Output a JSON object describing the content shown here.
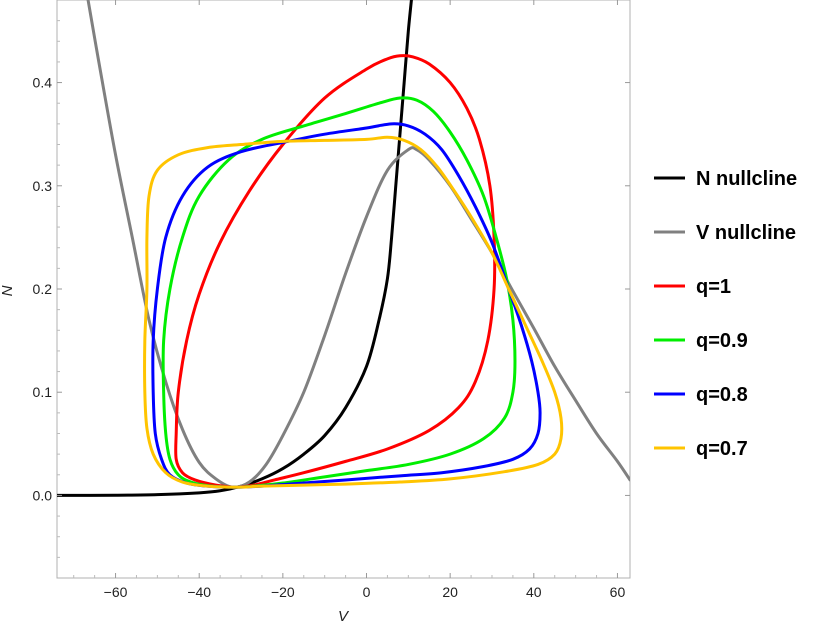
{
  "chart_data": {
    "type": "line",
    "title": "",
    "xlabel": "V",
    "ylabel": "N",
    "xlim": [
      -74,
      63
    ],
    "ylim": [
      -0.08,
      0.48
    ],
    "grid": false,
    "legend_position": "right",
    "x_ticks": [
      -60,
      -40,
      -20,
      0,
      20,
      40,
      60
    ],
    "x_tick_labels": [
      "−60",
      "−40",
      "−20",
      "0",
      "20",
      "40",
      "60"
    ],
    "y_ticks": [
      0.0,
      0.1,
      0.2,
      0.3,
      0.4
    ],
    "y_tick_labels": [
      "0.0",
      "0.1",
      "0.2",
      "0.3",
      "0.4"
    ],
    "series": [
      {
        "name": "N nullcline",
        "color": "#000000",
        "closed": false,
        "points": [
          [
            -74,
            0.0
          ],
          [
            -60,
            0.0002
          ],
          [
            -50,
            0.0008
          ],
          [
            -40,
            0.0025
          ],
          [
            -35,
            0.0045
          ],
          [
            -30,
            0.009
          ],
          [
            -25,
            0.016
          ],
          [
            -20,
            0.026
          ],
          [
            -15,
            0.04
          ],
          [
            -10,
            0.058
          ],
          [
            -5,
            0.085
          ],
          [
            0,
            0.125
          ],
          [
            3,
            0.17
          ],
          [
            5,
            0.21
          ],
          [
            6,
            0.25
          ],
          [
            7,
            0.3
          ],
          [
            8,
            0.35
          ],
          [
            9,
            0.4
          ],
          [
            10,
            0.45
          ],
          [
            11,
            0.49
          ]
        ]
      },
      {
        "name": "V nullcline",
        "color": "#808080",
        "closed": false,
        "points": [
          [
            -67,
            0.49
          ],
          [
            -64,
            0.42
          ],
          [
            -60,
            0.33
          ],
          [
            -56,
            0.25
          ],
          [
            -52,
            0.17
          ],
          [
            -48,
            0.11
          ],
          [
            -44,
            0.064
          ],
          [
            -40,
            0.032
          ],
          [
            -36,
            0.016
          ],
          [
            -32,
            0.008
          ],
          [
            -28,
            0.013
          ],
          [
            -24,
            0.03
          ],
          [
            -20,
            0.058
          ],
          [
            -15,
            0.1
          ],
          [
            -10,
            0.155
          ],
          [
            -5,
            0.215
          ],
          [
            0,
            0.27
          ],
          [
            5,
            0.315
          ],
          [
            10,
            0.335
          ],
          [
            12,
            0.335
          ],
          [
            15,
            0.325
          ],
          [
            20,
            0.3
          ],
          [
            25,
            0.268
          ],
          [
            30,
            0.235
          ],
          [
            35,
            0.198
          ],
          [
            40,
            0.162
          ],
          [
            45,
            0.125
          ],
          [
            50,
            0.092
          ],
          [
            55,
            0.06
          ],
          [
            60,
            0.033
          ],
          [
            63,
            0.015
          ]
        ]
      },
      {
        "name": "q=1",
        "color": "#ff0000",
        "closed": true,
        "points": [
          [
            -31,
            0.008
          ],
          [
            -36,
            0.01
          ],
          [
            -41,
            0.015
          ],
          [
            -44,
            0.022
          ],
          [
            -45.5,
            0.035
          ],
          [
            -45.5,
            0.06
          ],
          [
            -45,
            0.1
          ],
          [
            -43,
            0.15
          ],
          [
            -40,
            0.195
          ],
          [
            -35,
            0.245
          ],
          [
            -28,
            0.295
          ],
          [
            -20,
            0.34
          ],
          [
            -10,
            0.385
          ],
          [
            0,
            0.413
          ],
          [
            5,
            0.423
          ],
          [
            8,
            0.426
          ],
          [
            11,
            0.425
          ],
          [
            15,
            0.418
          ],
          [
            20,
            0.4
          ],
          [
            24,
            0.375
          ],
          [
            27,
            0.345
          ],
          [
            29.5,
            0.3
          ],
          [
            30.5,
            0.25
          ],
          [
            30.5,
            0.2
          ],
          [
            29,
            0.15
          ],
          [
            26,
            0.11
          ],
          [
            22,
            0.085
          ],
          [
            15,
            0.063
          ],
          [
            5,
            0.045
          ],
          [
            -5,
            0.033
          ],
          [
            -15,
            0.022
          ],
          [
            -22,
            0.015
          ],
          [
            -27,
            0.01
          ]
        ]
      },
      {
        "name": "q=0.9",
        "color": "#00ee00",
        "closed": true,
        "points": [
          [
            -31,
            0.008
          ],
          [
            -37,
            0.009
          ],
          [
            -42,
            0.013
          ],
          [
            -45,
            0.02
          ],
          [
            -47,
            0.035
          ],
          [
            -48,
            0.06
          ],
          [
            -48.5,
            0.1
          ],
          [
            -48.5,
            0.15
          ],
          [
            -47,
            0.2
          ],
          [
            -44,
            0.25
          ],
          [
            -40,
            0.29
          ],
          [
            -33,
            0.325
          ],
          [
            -25,
            0.345
          ],
          [
            -15,
            0.358
          ],
          [
            -5,
            0.37
          ],
          [
            3,
            0.38
          ],
          [
            8,
            0.385
          ],
          [
            12,
            0.383
          ],
          [
            16,
            0.372
          ],
          [
            20,
            0.352
          ],
          [
            24,
            0.325
          ],
          [
            28,
            0.29
          ],
          [
            31,
            0.25
          ],
          [
            33.5,
            0.21
          ],
          [
            35,
            0.17
          ],
          [
            35.5,
            0.13
          ],
          [
            35,
            0.1
          ],
          [
            33,
            0.075
          ],
          [
            28,
            0.055
          ],
          [
            20,
            0.04
          ],
          [
            10,
            0.03
          ],
          [
            0,
            0.024
          ],
          [
            -10,
            0.018
          ],
          [
            -20,
            0.012
          ],
          [
            -27,
            0.009
          ]
        ]
      },
      {
        "name": "q=0.8",
        "color": "#0000ff",
        "closed": true,
        "points": [
          [
            -31,
            0.008
          ],
          [
            -38,
            0.009
          ],
          [
            -43,
            0.012
          ],
          [
            -47,
            0.02
          ],
          [
            -49,
            0.035
          ],
          [
            -50.5,
            0.06
          ],
          [
            -51,
            0.1
          ],
          [
            -51,
            0.15
          ],
          [
            -50,
            0.2
          ],
          [
            -48,
            0.25
          ],
          [
            -44,
            0.29
          ],
          [
            -38,
            0.318
          ],
          [
            -30,
            0.333
          ],
          [
            -20,
            0.342
          ],
          [
            -10,
            0.35
          ],
          [
            0,
            0.356
          ],
          [
            6,
            0.36
          ],
          [
            10,
            0.358
          ],
          [
            14,
            0.35
          ],
          [
            18,
            0.335
          ],
          [
            22,
            0.31
          ],
          [
            26,
            0.28
          ],
          [
            30,
            0.245
          ],
          [
            34,
            0.2
          ],
          [
            37,
            0.165
          ],
          [
            39.5,
            0.13
          ],
          [
            41,
            0.1
          ],
          [
            41.5,
            0.08
          ],
          [
            41,
            0.06
          ],
          [
            39,
            0.045
          ],
          [
            35,
            0.035
          ],
          [
            28,
            0.028
          ],
          [
            18,
            0.022
          ],
          [
            8,
            0.019
          ],
          [
            -5,
            0.015
          ],
          [
            -15,
            0.012
          ],
          [
            -25,
            0.009
          ]
        ]
      },
      {
        "name": "q=0.7",
        "color": "#ffc400",
        "closed": true,
        "points": [
          [
            -31,
            0.008
          ],
          [
            -38,
            0.009
          ],
          [
            -44,
            0.013
          ],
          [
            -48,
            0.022
          ],
          [
            -51,
            0.04
          ],
          [
            -52.5,
            0.065
          ],
          [
            -53,
            0.1
          ],
          [
            -53,
            0.15
          ],
          [
            -52.5,
            0.2
          ],
          [
            -52.5,
            0.25
          ],
          [
            -52,
            0.29
          ],
          [
            -50,
            0.315
          ],
          [
            -45,
            0.33
          ],
          [
            -38,
            0.337
          ],
          [
            -30,
            0.34
          ],
          [
            -20,
            0.343
          ],
          [
            -10,
            0.344
          ],
          [
            0,
            0.345
          ],
          [
            5,
            0.347
          ],
          [
            9,
            0.344
          ],
          [
            13,
            0.335
          ],
          [
            17,
            0.318
          ],
          [
            21,
            0.295
          ],
          [
            25,
            0.27
          ],
          [
            30,
            0.235
          ],
          [
            34,
            0.2
          ],
          [
            38,
            0.165
          ],
          [
            42,
            0.13
          ],
          [
            45,
            0.1
          ],
          [
            46.5,
            0.075
          ],
          [
            46.5,
            0.055
          ],
          [
            45,
            0.04
          ],
          [
            41,
            0.03
          ],
          [
            33,
            0.023
          ],
          [
            20,
            0.016
          ],
          [
            8,
            0.013
          ],
          [
            -5,
            0.011
          ],
          [
            -15,
            0.01
          ],
          [
            -25,
            0.009
          ]
        ]
      }
    ]
  }
}
